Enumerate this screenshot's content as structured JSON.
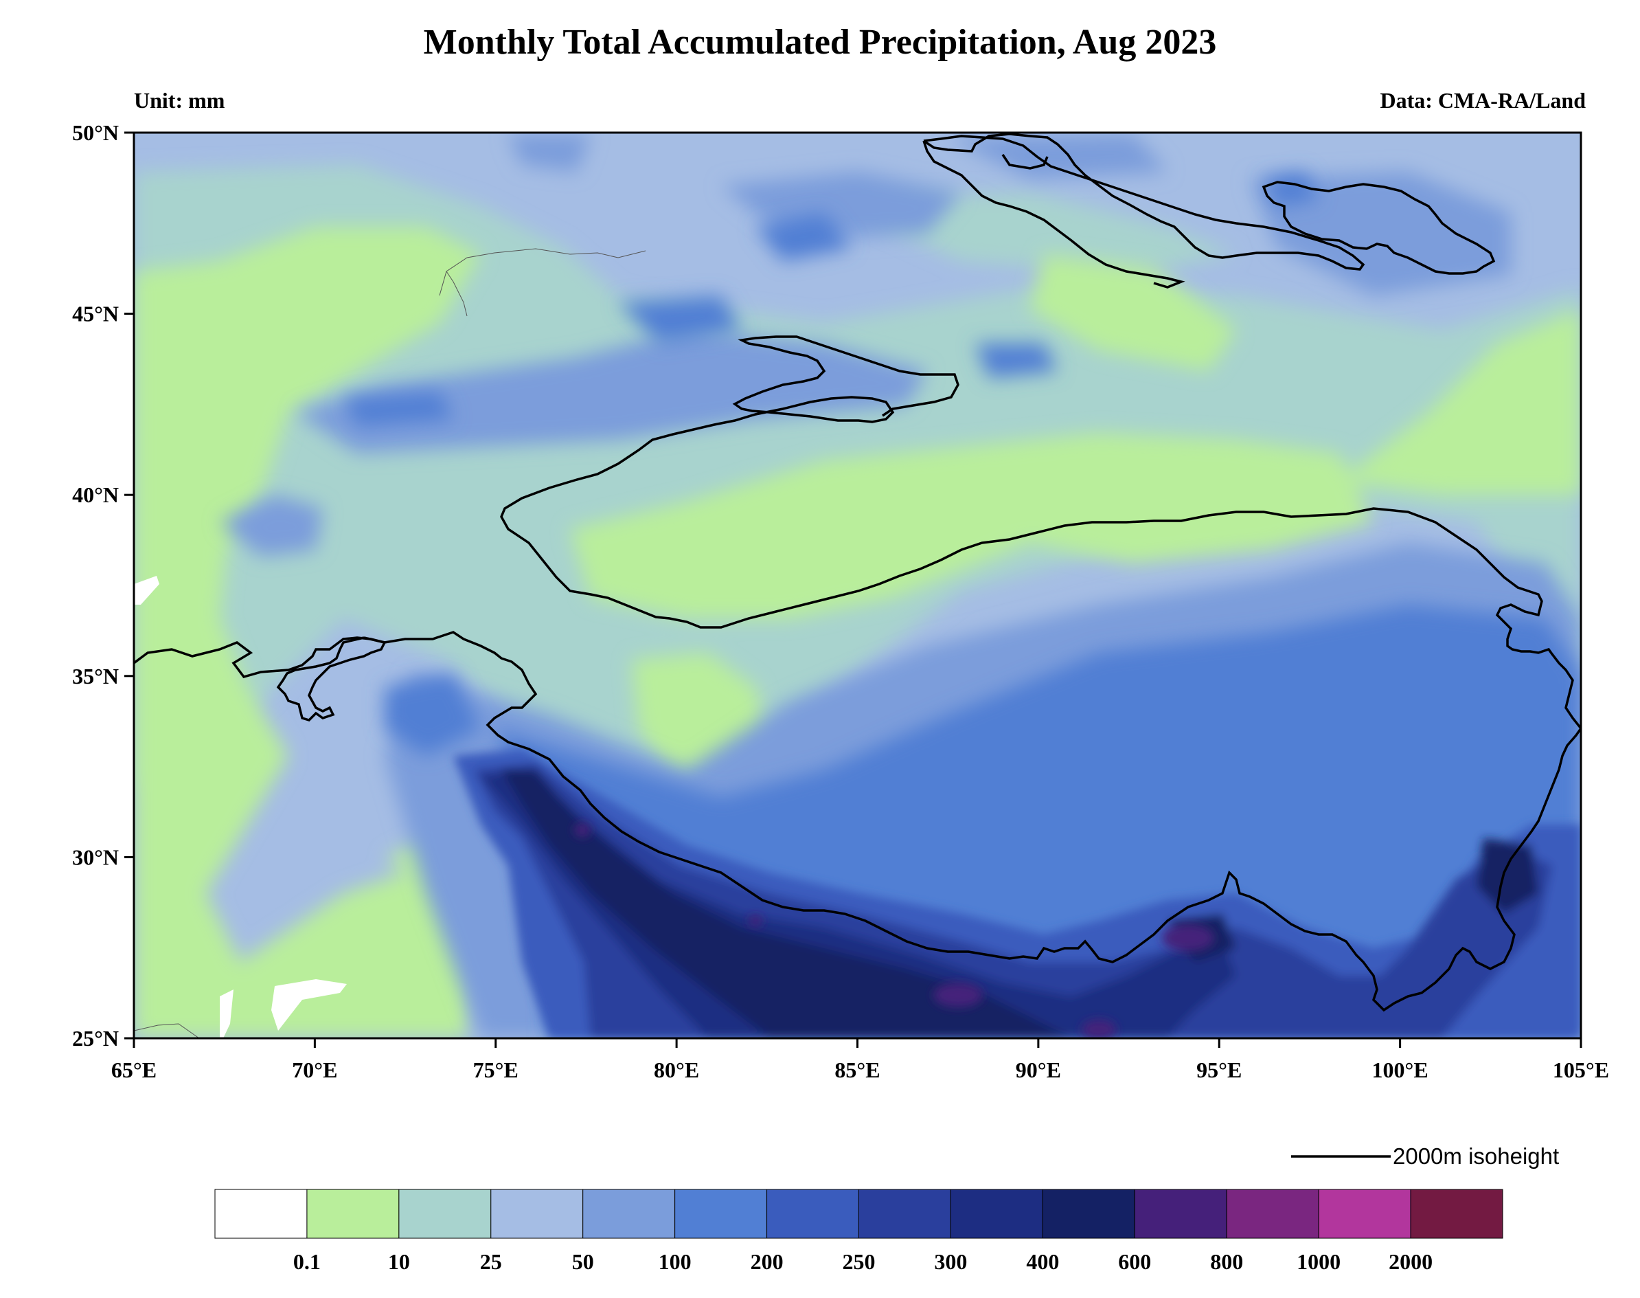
{
  "title": "Monthly Total Accumulated Precipitation, Aug 2023",
  "unit_label": "Unit: mm",
  "source_label": "Data: CMA-RA/Land",
  "isoheight_legend": "2000m isoheight",
  "axes": {
    "lon_ticks": [
      "65°E",
      "70°E",
      "75°E",
      "80°E",
      "85°E",
      "90°E",
      "95°E",
      "100°E",
      "105°E"
    ],
    "lat_ticks": [
      "50°N",
      "45°N",
      "40°N",
      "35°N",
      "30°N",
      "25°N"
    ],
    "lon_range": [
      65,
      105
    ],
    "lat_range": [
      25,
      50
    ]
  },
  "colorbar": {
    "labels": [
      "0.1",
      "10",
      "25",
      "50",
      "100",
      "200",
      "250",
      "300",
      "400",
      "600",
      "800",
      "1000",
      "2000"
    ],
    "colors": [
      "#ffffff",
      "#b9ee9b",
      "#a8d3ce",
      "#a5bde4",
      "#7b9ddb",
      "#517fd4",
      "#3a5cbd",
      "#2a3f9d",
      "#1d2d82",
      "#142164",
      "#45207a",
      "#7a2680",
      "#b2369d",
      "#731a42"
    ]
  }
}
